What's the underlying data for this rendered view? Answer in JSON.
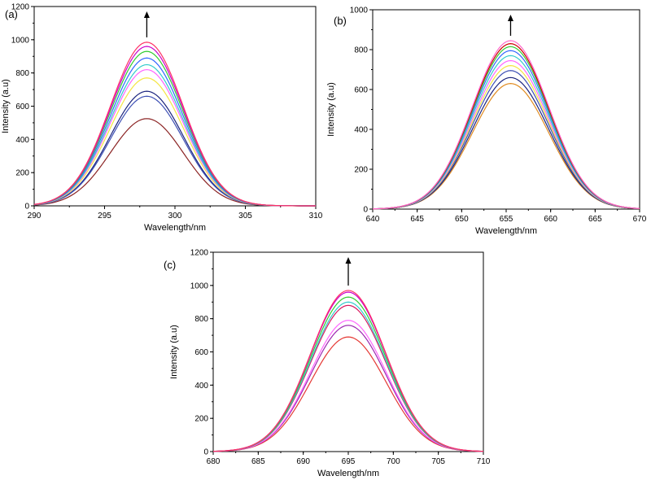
{
  "chart_data": [
    {
      "type": "line",
      "panel_label": "(a)",
      "xlabel": "Wavelength/nm",
      "ylabel": "Intensity (a.u)",
      "xlim": [
        290,
        310
      ],
      "ylim": [
        0,
        1200
      ],
      "xticks": [
        290,
        295,
        300,
        305,
        310
      ],
      "yticks": [
        0,
        200,
        400,
        600,
        800,
        1000,
        1200
      ],
      "grid": false,
      "annotation": "upward arrow indicating increasing intensity",
      "peak_x": 298,
      "curve_width": 2.6,
      "series": [
        {
          "color": "#8b2323",
          "peak": 525
        },
        {
          "color": "#1a237e",
          "peak": 690
        },
        {
          "color": "#3f51b5",
          "peak": 660
        },
        {
          "color": "#f4e542",
          "peak": 770
        },
        {
          "color": "#ff66ff",
          "peak": 820
        },
        {
          "color": "#33cccc",
          "peak": 850
        },
        {
          "color": "#3366ff",
          "peak": 890
        },
        {
          "color": "#33cc33",
          "peak": 930
        },
        {
          "color": "#cc00cc",
          "peak": 960
        },
        {
          "color": "#ff3366",
          "peak": 985
        }
      ]
    },
    {
      "type": "line",
      "panel_label": "(b)",
      "xlabel": "Wavelength/nm",
      "ylabel": "Intensity (a.u)",
      "xlim": [
        640,
        670
      ],
      "ylim": [
        0,
        1000
      ],
      "xticks": [
        640,
        645,
        650,
        655,
        660,
        665,
        670
      ],
      "yticks": [
        0,
        200,
        400,
        600,
        800,
        1000
      ],
      "grid": false,
      "annotation": "upward arrow indicating increasing intensity",
      "peak_x": 655.5,
      "curve_width": 4.3,
      "series": [
        {
          "color": "#e08a1e",
          "peak": 630
        },
        {
          "color": "#1a237e",
          "peak": 660
        },
        {
          "color": "#3f51b5",
          "peak": 695
        },
        {
          "color": "#f4e542",
          "peak": 720
        },
        {
          "color": "#ff66ff",
          "peak": 745
        },
        {
          "color": "#33cccc",
          "peak": 770
        },
        {
          "color": "#3366ff",
          "peak": 795
        },
        {
          "color": "#33cc33",
          "peak": 815
        },
        {
          "color": "#cc0000",
          "peak": 830
        },
        {
          "color": "#ff66cc",
          "peak": 845
        }
      ]
    },
    {
      "type": "line",
      "panel_label": "(c)",
      "xlabel": "Wavelength/nm",
      "ylabel": "Intensity (a.u)",
      "xlim": [
        680,
        710
      ],
      "ylim": [
        0,
        1200
      ],
      "xticks": [
        680,
        685,
        690,
        695,
        700,
        705,
        710
      ],
      "yticks": [
        0,
        200,
        400,
        600,
        800,
        1000,
        1200
      ],
      "grid": false,
      "annotation": "upward arrow indicating increasing intensity",
      "peak_x": 695,
      "curve_width": 4.2,
      "series": [
        {
          "color": "#e53935",
          "peak": 690
        },
        {
          "color": "#9c27b0",
          "peak": 760
        },
        {
          "color": "#ff66ff",
          "peak": 790
        },
        {
          "color": "#d81b60",
          "peak": 880
        },
        {
          "color": "#33cccc",
          "peak": 900
        },
        {
          "color": "#33cc33",
          "peak": 930
        },
        {
          "color": "#cc00cc",
          "peak": 960
        },
        {
          "color": "#ff3366",
          "peak": 970
        }
      ]
    }
  ]
}
